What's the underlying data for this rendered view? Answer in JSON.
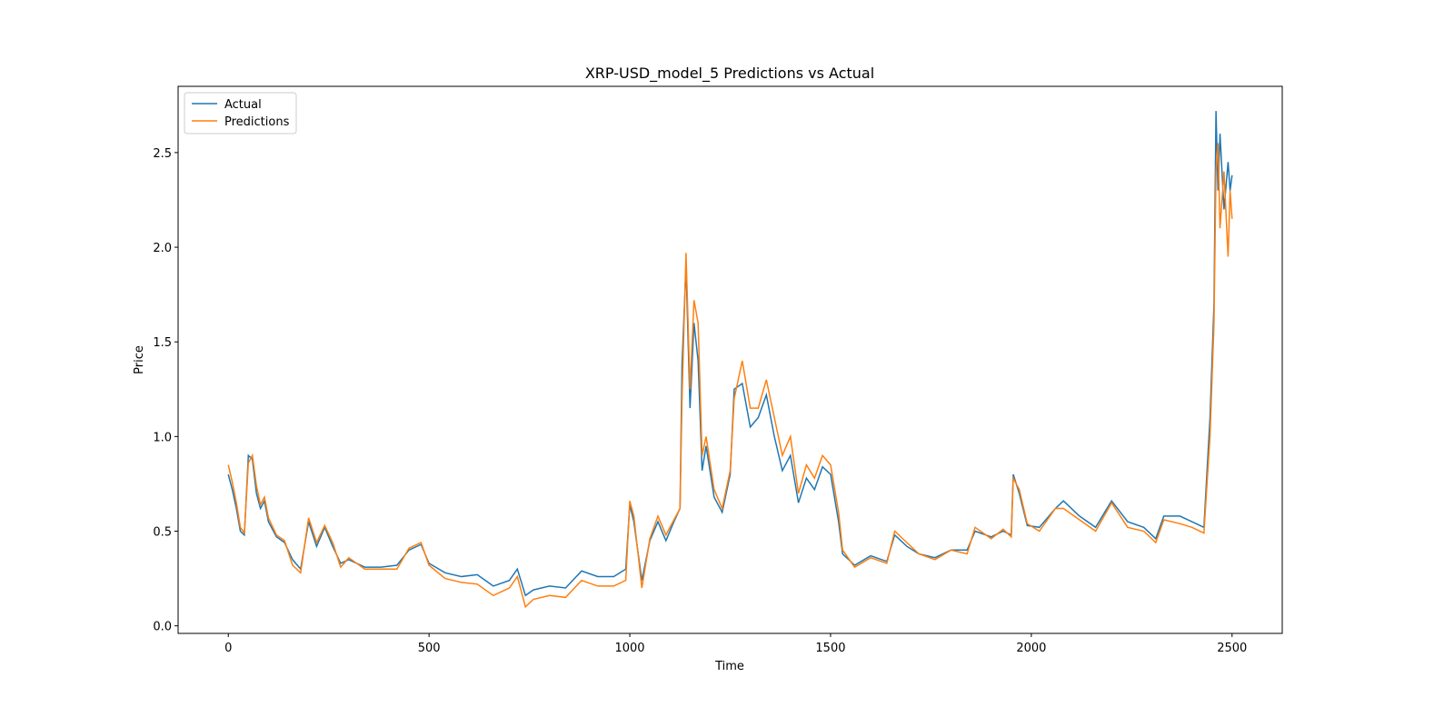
{
  "chart_data": {
    "type": "line",
    "title": "XRP-USD_model_5 Predictions vs Actual",
    "x_label": "Time",
    "y_label": "Price",
    "x": [
      0,
      10,
      20,
      30,
      40,
      50,
      60,
      70,
      80,
      90,
      100,
      120,
      140,
      160,
      180,
      200,
      220,
      240,
      260,
      280,
      300,
      340,
      380,
      420,
      450,
      480,
      500,
      540,
      580,
      620,
      660,
      700,
      720,
      740,
      760,
      800,
      840,
      880,
      920,
      960,
      990,
      1000,
      1010,
      1030,
      1050,
      1070,
      1090,
      1110,
      1125,
      1130,
      1140,
      1150,
      1160,
      1170,
      1180,
      1190,
      1210,
      1230,
      1250,
      1260,
      1280,
      1300,
      1320,
      1340,
      1360,
      1380,
      1400,
      1420,
      1440,
      1460,
      1480,
      1500,
      1520,
      1530,
      1560,
      1600,
      1640,
      1660,
      1690,
      1720,
      1760,
      1800,
      1840,
      1860,
      1900,
      1930,
      1950,
      1955,
      1970,
      1990,
      2020,
      2060,
      2080,
      2120,
      2160,
      2200,
      2240,
      2280,
      2310,
      2330,
      2370,
      2400,
      2430,
      2445,
      2455,
      2460,
      2465,
      2470,
      2480,
      2490,
      2495,
      2500
    ],
    "series": [
      {
        "name": "Actual",
        "color": "#1f77b4",
        "values": [
          0.8,
          0.72,
          0.62,
          0.5,
          0.48,
          0.9,
          0.88,
          0.7,
          0.62,
          0.66,
          0.55,
          0.47,
          0.44,
          0.35,
          0.3,
          0.55,
          0.42,
          0.52,
          0.42,
          0.33,
          0.35,
          0.31,
          0.31,
          0.32,
          0.4,
          0.43,
          0.33,
          0.28,
          0.26,
          0.27,
          0.21,
          0.24,
          0.3,
          0.16,
          0.19,
          0.21,
          0.2,
          0.29,
          0.26,
          0.26,
          0.3,
          0.64,
          0.55,
          0.24,
          0.45,
          0.55,
          0.45,
          0.55,
          0.62,
          1.38,
          1.9,
          1.15,
          1.6,
          1.4,
          0.82,
          0.95,
          0.68,
          0.6,
          0.8,
          1.25,
          1.28,
          1.05,
          1.1,
          1.22,
          1.0,
          0.82,
          0.9,
          0.65,
          0.78,
          0.72,
          0.84,
          0.8,
          0.55,
          0.38,
          0.32,
          0.37,
          0.34,
          0.48,
          0.42,
          0.38,
          0.36,
          0.4,
          0.4,
          0.5,
          0.47,
          0.5,
          0.48,
          0.8,
          0.7,
          0.53,
          0.52,
          0.62,
          0.66,
          0.58,
          0.52,
          0.66,
          0.55,
          0.52,
          0.46,
          0.58,
          0.58,
          0.55,
          0.52,
          1.1,
          1.7,
          2.72,
          2.3,
          2.6,
          2.2,
          2.45,
          2.3,
          2.38
        ]
      },
      {
        "name": "Predictions",
        "color": "#ff7f0e",
        "values": [
          0.85,
          0.76,
          0.65,
          0.52,
          0.49,
          0.86,
          0.9,
          0.74,
          0.64,
          0.68,
          0.57,
          0.48,
          0.45,
          0.32,
          0.28,
          0.57,
          0.44,
          0.53,
          0.44,
          0.31,
          0.36,
          0.3,
          0.3,
          0.3,
          0.41,
          0.44,
          0.32,
          0.25,
          0.23,
          0.22,
          0.16,
          0.2,
          0.26,
          0.1,
          0.14,
          0.16,
          0.15,
          0.24,
          0.21,
          0.21,
          0.24,
          0.66,
          0.58,
          0.2,
          0.46,
          0.58,
          0.48,
          0.56,
          0.62,
          1.2,
          1.97,
          1.25,
          1.72,
          1.6,
          0.9,
          1.0,
          0.72,
          0.62,
          0.82,
          1.2,
          1.4,
          1.15,
          1.15,
          1.3,
          1.1,
          0.9,
          1.0,
          0.7,
          0.85,
          0.78,
          0.9,
          0.85,
          0.6,
          0.4,
          0.31,
          0.36,
          0.33,
          0.5,
          0.44,
          0.38,
          0.35,
          0.4,
          0.38,
          0.52,
          0.46,
          0.51,
          0.47,
          0.78,
          0.72,
          0.54,
          0.5,
          0.62,
          0.62,
          0.56,
          0.5,
          0.65,
          0.52,
          0.5,
          0.44,
          0.56,
          0.54,
          0.52,
          0.49,
          1.0,
          1.6,
          2.4,
          2.55,
          2.1,
          2.4,
          1.95,
          2.3,
          2.15
        ]
      }
    ],
    "xlim": [
      -125,
      2625
    ],
    "ylim": [
      -0.04,
      2.85
    ],
    "xticks": [
      0,
      500,
      1000,
      1500,
      2000,
      2500
    ],
    "yticks": [
      {
        "value": 0,
        "label": "0.0"
      },
      0.5,
      {
        "value": 1,
        "label": "1.0"
      },
      1.5,
      {
        "value": 2,
        "label": "2.0"
      },
      2.5
    ],
    "legend": "upper left"
  }
}
